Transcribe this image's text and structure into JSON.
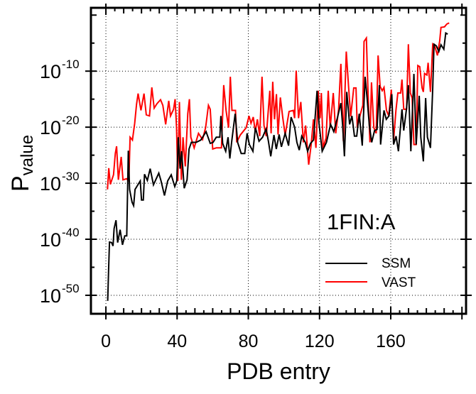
{
  "chart_data": {
    "type": "line",
    "title": "",
    "xlabel": "PDB entry",
    "ylabel": "P",
    "ylabel_subscript": "value",
    "y_scale": "log10 (values below are exponents of 10)",
    "xlim": [
      -8.4,
      202.3
    ],
    "ylim": [
      -53.3,
      1.3
    ],
    "xticks": [
      0,
      40,
      80,
      120,
      160
    ],
    "xtick_labels": [
      "0",
      "40",
      "80",
      "120",
      "160"
    ],
    "yticks": [
      -10,
      -20,
      -30,
      -40,
      -50
    ],
    "ytick_base": "10",
    "ytick_exponents": [
      "-10",
      "-20",
      "-30",
      "-40",
      "-50"
    ],
    "grid": true,
    "annotation": "1FIN:A",
    "legend_position": "lower-right",
    "series": [
      {
        "name": "SSM",
        "color": "#000000",
        "points": [
          [
            1,
            -51
          ],
          [
            1.5,
            -45.7
          ],
          [
            2,
            -40.5
          ],
          [
            3.2,
            -40.6
          ],
          [
            4,
            -41.2
          ],
          [
            4.6,
            -38.1
          ],
          [
            5.7,
            -36.6
          ],
          [
            6.6,
            -40.6
          ],
          [
            8,
            -38.3
          ],
          [
            9.3,
            -41
          ],
          [
            10.6,
            -39.4
          ],
          [
            11.7,
            -39.4
          ],
          [
            12,
            -34.5
          ],
          [
            12.6,
            -24.2
          ],
          [
            13.3,
            -31.1
          ],
          [
            14.7,
            -33.4
          ],
          [
            15.6,
            -34
          ],
          [
            16.4,
            -31.1
          ],
          [
            19.3,
            -29.6
          ],
          [
            20,
            -33
          ],
          [
            21,
            -33
          ],
          [
            21.7,
            -28.4
          ],
          [
            23.3,
            -29.5
          ],
          [
            24.9,
            -27.4
          ],
          [
            26.7,
            -30.3
          ],
          [
            28,
            -29.4
          ],
          [
            29.7,
            -28.2
          ],
          [
            31,
            -29.6
          ],
          [
            32.9,
            -32.2
          ],
          [
            34.7,
            -29.6
          ],
          [
            36.7,
            -28.5
          ],
          [
            38.7,
            -30.6
          ],
          [
            39.8,
            -29.6
          ],
          [
            40.7,
            -21.8
          ],
          [
            41.7,
            -27.4
          ],
          [
            42.5,
            -24.3
          ],
          [
            44,
            -30.9
          ],
          [
            45.6,
            -29.4
          ],
          [
            46.7,
            -23.9
          ],
          [
            48,
            -22.7
          ],
          [
            50.7,
            -22.7
          ],
          [
            53.3,
            -22.3
          ],
          [
            56.3,
            -20.8
          ],
          [
            58.6,
            -22.9
          ],
          [
            60.2,
            -22.7
          ],
          [
            62,
            -21.8
          ],
          [
            64,
            -21.8
          ],
          [
            64.6,
            -18
          ],
          [
            65.6,
            -22.9
          ],
          [
            67.3,
            -24.3
          ],
          [
            68.6,
            -21.8
          ],
          [
            69.6,
            -25.6
          ],
          [
            70.6,
            -22.7
          ],
          [
            72.6,
            -17.6
          ],
          [
            74,
            -22.7
          ],
          [
            76,
            -24.7
          ],
          [
            78,
            -24.7
          ],
          [
            79.3,
            -21.1
          ],
          [
            80.6,
            -23.1
          ],
          [
            82.6,
            -24.3
          ],
          [
            84,
            -20.1
          ],
          [
            86,
            -22.5
          ],
          [
            88,
            -21.8
          ],
          [
            90,
            -20.3
          ],
          [
            91.3,
            -22.5
          ],
          [
            92.6,
            -25.2
          ],
          [
            94.4,
            -21.4
          ],
          [
            95.7,
            -23.9
          ],
          [
            97.3,
            -21.3
          ],
          [
            98.6,
            -23.5
          ],
          [
            100.7,
            -21.1
          ],
          [
            102.6,
            -23.3
          ],
          [
            104,
            -18.2
          ],
          [
            106,
            -20
          ],
          [
            107.3,
            -22.7
          ],
          [
            108.6,
            -24.1
          ],
          [
            110,
            -21.6
          ],
          [
            112,
            -22.7
          ],
          [
            113.3,
            -24.3
          ],
          [
            114.9,
            -22.9
          ],
          [
            116.6,
            -22.3
          ],
          [
            118.6,
            -13.5
          ],
          [
            119.7,
            -19.3
          ],
          [
            121.5,
            -24.3
          ],
          [
            123.9,
            -22.7
          ],
          [
            126.2,
            -19.5
          ],
          [
            128,
            -20.8
          ],
          [
            130,
            -18.4
          ],
          [
            132,
            -15.7
          ],
          [
            133,
            -19.7
          ],
          [
            134,
            -25.2
          ],
          [
            135.3,
            -13.7
          ],
          [
            136.9,
            -19.5
          ],
          [
            138.2,
            -18
          ],
          [
            139.6,
            -21.6
          ],
          [
            140.9,
            -21.6
          ],
          [
            142.3,
            -17.6
          ],
          [
            144,
            -23.3
          ],
          [
            145.6,
            -11
          ],
          [
            146.7,
            -14.8
          ],
          [
            148,
            -19.7
          ],
          [
            149.3,
            -22.7
          ],
          [
            150.9,
            -20.6
          ],
          [
            152.3,
            -20.4
          ],
          [
            153.6,
            -12.5
          ],
          [
            154.3,
            -23.1
          ],
          [
            156.2,
            -17
          ],
          [
            157.5,
            -18.6
          ],
          [
            159,
            -18
          ],
          [
            160.6,
            -14.1
          ],
          [
            161.6,
            -23.1
          ],
          [
            163,
            -21.6
          ],
          [
            164.3,
            -24.3
          ],
          [
            166.3,
            -16.8
          ],
          [
            167.3,
            -20.6
          ],
          [
            168.9,
            -16.6
          ],
          [
            169.9,
            -12.5
          ],
          [
            171.3,
            -24.3
          ],
          [
            173,
            -10.5
          ],
          [
            174.3,
            -23.1
          ],
          [
            176,
            -14.4
          ],
          [
            176.9,
            -21.8
          ],
          [
            178.3,
            -26.1
          ],
          [
            179.6,
            -14.8
          ],
          [
            180.6,
            -21.8
          ],
          [
            182.3,
            -23.7
          ],
          [
            183.6,
            -13
          ],
          [
            184.3,
            -5.2
          ],
          [
            185.6,
            -5.5
          ],
          [
            187,
            -6.5
          ],
          [
            188.2,
            -5.3
          ],
          [
            189.8,
            -6.1
          ],
          [
            190.9,
            -3.2
          ],
          [
            192,
            -3.4
          ]
        ]
      },
      {
        "name": "VAST",
        "color": "#ff0000",
        "points": [
          [
            0.9,
            -31.1
          ],
          [
            1.6,
            -27.3
          ],
          [
            2.5,
            -30.2
          ],
          [
            4.3,
            -28.5
          ],
          [
            5.3,
            -24.7
          ],
          [
            6,
            -23.4
          ],
          [
            7,
            -29.4
          ],
          [
            8.6,
            -25.3
          ],
          [
            9.6,
            -29.4
          ],
          [
            11.6,
            -29.2
          ],
          [
            12.9,
            -29.6
          ],
          [
            13.6,
            -21.8
          ],
          [
            14.9,
            -22.3
          ],
          [
            16.2,
            -19.3
          ],
          [
            17.2,
            -15.9
          ],
          [
            18.1,
            -14
          ],
          [
            19.7,
            -17
          ],
          [
            21.4,
            -14
          ],
          [
            22.7,
            -17.8
          ],
          [
            24.5,
            -18
          ],
          [
            25.8,
            -12.9
          ],
          [
            27.1,
            -16.6
          ],
          [
            28.7,
            -15.8
          ],
          [
            30.7,
            -15.1
          ],
          [
            32,
            -16.1
          ],
          [
            33.6,
            -19.5
          ],
          [
            35.3,
            -15.3
          ],
          [
            36.3,
            -18
          ],
          [
            38,
            -16.8
          ],
          [
            38.9,
            -15
          ],
          [
            39.7,
            -20.1
          ],
          [
            40.4,
            -29.6
          ],
          [
            41.3,
            -15.5
          ],
          [
            42.4,
            -29.4
          ],
          [
            43.3,
            -21.8
          ],
          [
            44.6,
            -27
          ],
          [
            46,
            -17.6
          ],
          [
            46.9,
            -15
          ],
          [
            47.7,
            -21.8
          ],
          [
            49.6,
            -23.7
          ],
          [
            52,
            -21.1
          ],
          [
            54.3,
            -22.2
          ],
          [
            56,
            -20.1
          ],
          [
            57.6,
            -16.1
          ],
          [
            58.6,
            -16.8
          ],
          [
            60,
            -23.9
          ],
          [
            62,
            -23.7
          ],
          [
            64.9,
            -23.7
          ],
          [
            66.2,
            -12.5
          ],
          [
            67.5,
            -17
          ],
          [
            68.9,
            -20.1
          ],
          [
            69.9,
            -11
          ],
          [
            70.8,
            -17
          ],
          [
            72.8,
            -17
          ],
          [
            73.5,
            -22.7
          ],
          [
            75.5,
            -21.4
          ],
          [
            78.8,
            -20.1
          ],
          [
            80.4,
            -18
          ],
          [
            81.5,
            -19.3
          ],
          [
            82.8,
            -18.2
          ],
          [
            83.9,
            -20.8
          ],
          [
            85.1,
            -18.6
          ],
          [
            86.4,
            -21.6
          ],
          [
            87.7,
            -11
          ],
          [
            88.8,
            -19.7
          ],
          [
            90.1,
            -21.6
          ],
          [
            92.1,
            -13.5
          ],
          [
            92.8,
            -21.1
          ],
          [
            93.7,
            -11.9
          ],
          [
            94.7,
            -18.6
          ],
          [
            95.8,
            -14.1
          ],
          [
            96.7,
            -21.3
          ],
          [
            98,
            -14.7
          ],
          [
            99.4,
            -18.4
          ],
          [
            100.7,
            -21.4
          ],
          [
            102.9,
            -17.2
          ],
          [
            105.3,
            -17
          ],
          [
            106,
            -18.4
          ],
          [
            106.9,
            -9.9
          ],
          [
            108.2,
            -18.4
          ],
          [
            109.5,
            -15.5
          ],
          [
            110.9,
            -22.7
          ],
          [
            112.2,
            -19.7
          ],
          [
            113.9,
            -26.7
          ],
          [
            115.3,
            -23.1
          ],
          [
            116.6,
            -18.6
          ],
          [
            118,
            -23.7
          ],
          [
            119.3,
            -13.5
          ],
          [
            120.3,
            -18.4
          ],
          [
            121,
            -13.9
          ],
          [
            122,
            -23.7
          ],
          [
            123.7,
            -21.9
          ],
          [
            124.9,
            -13.5
          ],
          [
            126,
            -20.1
          ],
          [
            127.7,
            -13.9
          ],
          [
            129.1,
            -21.1
          ],
          [
            130.7,
            -16.8
          ],
          [
            132,
            -8.7
          ],
          [
            133.4,
            -22.5
          ],
          [
            135,
            -6.5
          ],
          [
            136.3,
            -12.7
          ],
          [
            137.5,
            -18.1
          ],
          [
            139.2,
            -13
          ],
          [
            140.5,
            -13
          ],
          [
            141.2,
            -20.1
          ],
          [
            143,
            -17.6
          ],
          [
            144.3,
            -16.1
          ],
          [
            145,
            -4.7
          ],
          [
            146.3,
            -4.1
          ],
          [
            147.2,
            -13.3
          ],
          [
            148.3,
            -22.7
          ],
          [
            149.2,
            -12
          ],
          [
            150.5,
            -20.1
          ],
          [
            151.8,
            -21.1
          ],
          [
            152.9,
            -7.2
          ],
          [
            154,
            -12.7
          ],
          [
            155.2,
            -13.5
          ],
          [
            156.2,
            -12.9
          ],
          [
            157.6,
            -17
          ],
          [
            158.9,
            -18
          ],
          [
            160.3,
            -13.3
          ],
          [
            161.6,
            -22.3
          ],
          [
            162.9,
            -17
          ],
          [
            164,
            -13.9
          ],
          [
            165.6,
            -13.9
          ],
          [
            166.3,
            -11.5
          ],
          [
            167.3,
            -16.8
          ],
          [
            168.9,
            -16.8
          ],
          [
            169.9,
            -5.2
          ],
          [
            171,
            -13.9
          ],
          [
            172,
            -14.8
          ],
          [
            173,
            -23.1
          ],
          [
            174.3,
            -23.1
          ],
          [
            175.2,
            -9
          ],
          [
            176.3,
            -9.2
          ],
          [
            177.6,
            -13
          ],
          [
            178.3,
            -13.7
          ],
          [
            179,
            -10.4
          ],
          [
            180.3,
            -10.7
          ],
          [
            181,
            -8.5
          ],
          [
            182.3,
            -13.7
          ],
          [
            183.6,
            -5.2
          ],
          [
            184.9,
            -5.7
          ],
          [
            186.2,
            -7.2
          ],
          [
            187.5,
            -4.6
          ],
          [
            188.2,
            -2.2
          ],
          [
            190.2,
            -2.1
          ],
          [
            191.5,
            -1.6
          ],
          [
            192.8,
            -1.4
          ]
        ]
      }
    ]
  }
}
